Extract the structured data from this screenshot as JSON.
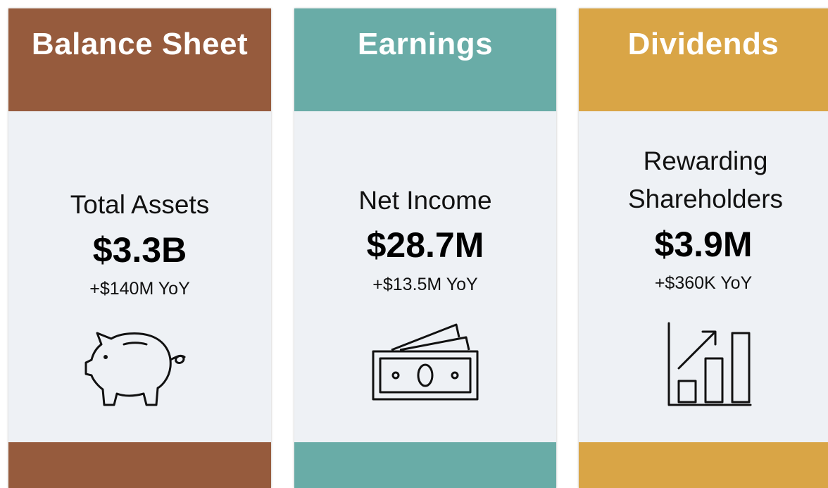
{
  "cards": [
    {
      "title": "Balance Sheet",
      "label": "Total Assets",
      "value": "$3.3B",
      "change": "+$140M YoY"
    },
    {
      "title": "Earnings",
      "label": "Net Income",
      "value": "$28.7M",
      "change": "+$13.5M YoY"
    },
    {
      "title": "Dividends",
      "label": "Rewarding Shareholders",
      "value": "$3.9M",
      "change": "+$360K YoY"
    }
  ]
}
